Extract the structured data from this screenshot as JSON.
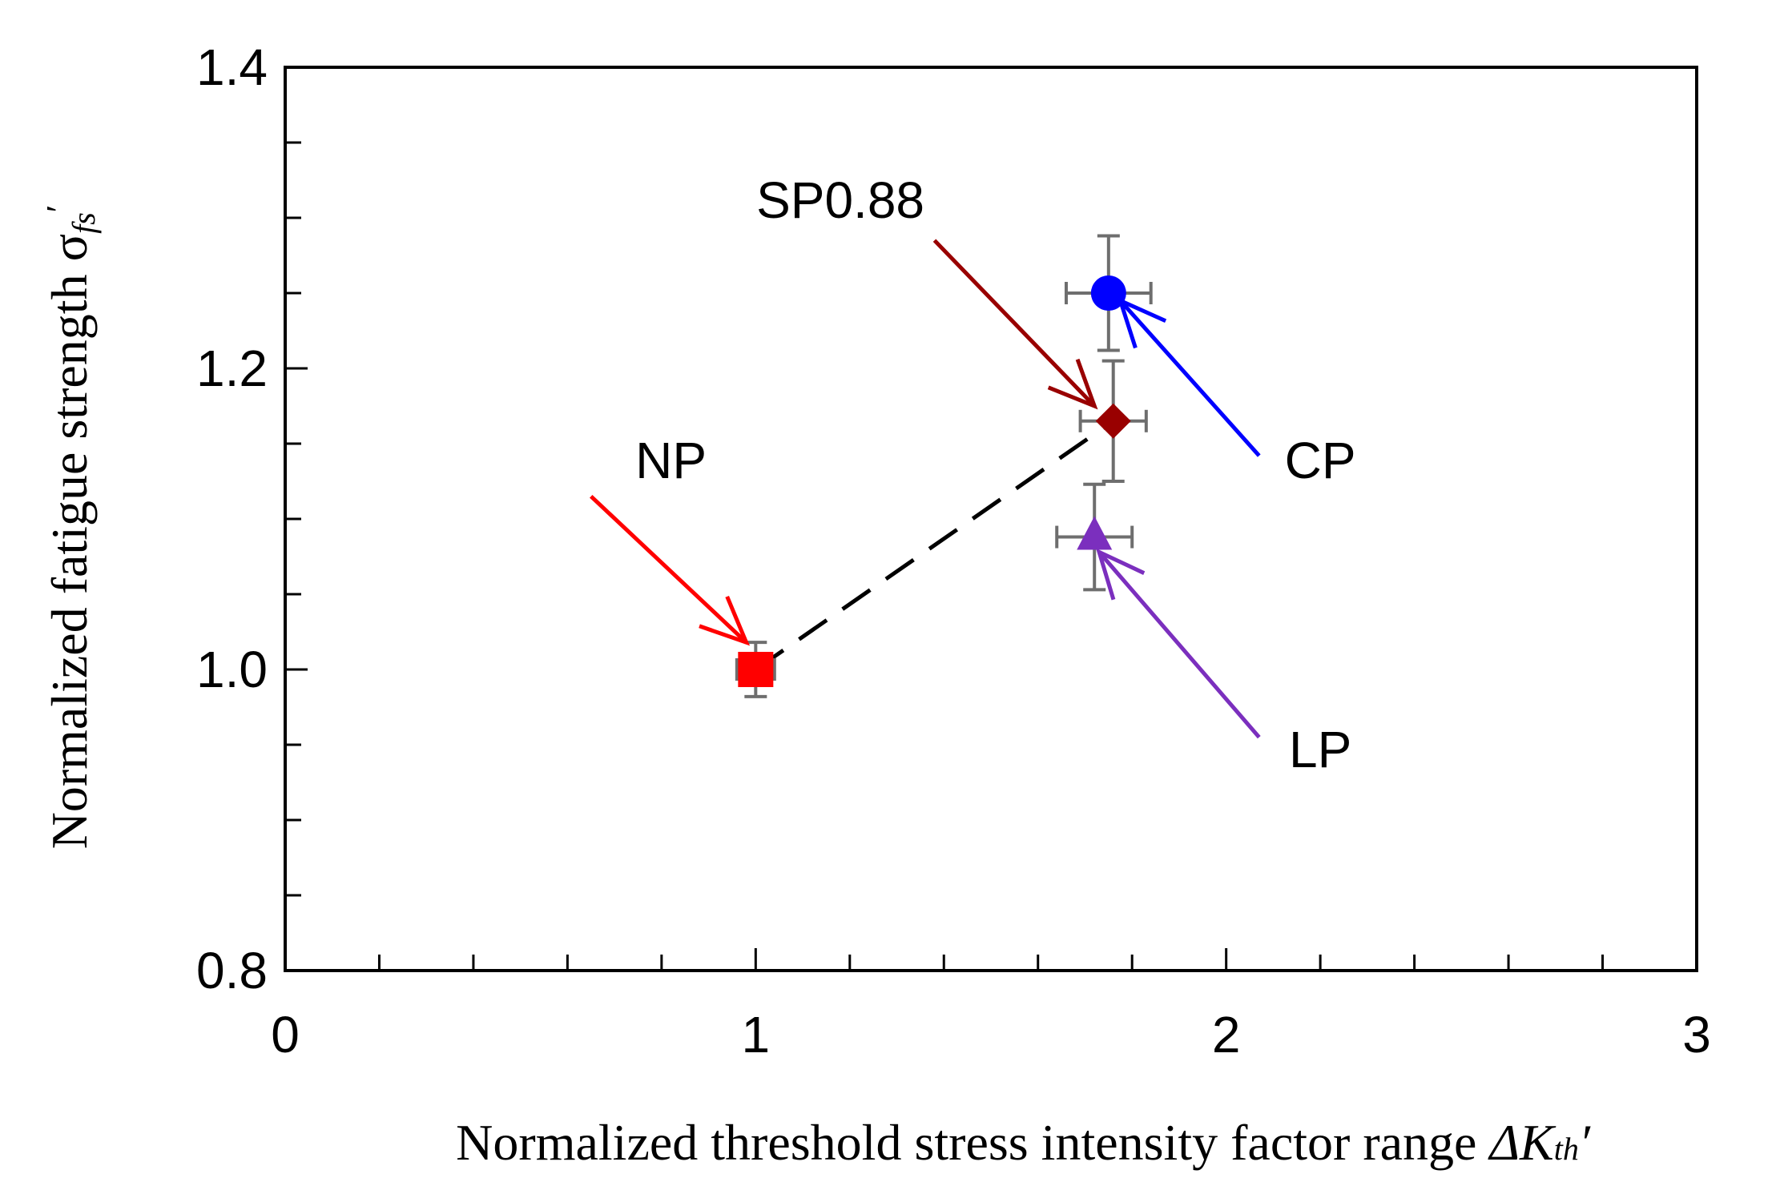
{
  "chart_data": {
    "type": "scatter",
    "title": "",
    "xlabel": "Normalized threshold stress intensity factor range",
    "xlabel_symbol": "ΔK",
    "xlabel_subscript": "th",
    "xlabel_prime": "′",
    "ylabel": "Normalized fatigue strength",
    "ylabel_symbol": "σ",
    "ylabel_subscript": "fs",
    "ylabel_prime": "′",
    "xlim": [
      0,
      3
    ],
    "ylim": [
      0.8,
      1.4
    ],
    "xticks": [
      0,
      1,
      2,
      3
    ],
    "xtick_labels": [
      "0",
      "1",
      "2",
      "3"
    ],
    "yticks": [
      0.8,
      1.0,
      1.2,
      1.4
    ],
    "ytick_labels": [
      "0.8",
      "1.0",
      "1.2",
      "1.4"
    ],
    "x_minor_step": 0.2,
    "y_minor_step": 0.05,
    "grid": false,
    "series": [
      {
        "name": "NP",
        "x": 1.0,
        "y": 1.0,
        "xerr": 0.04,
        "yerr": 0.018,
        "marker": "square",
        "color": "#ff0000",
        "label_x": 0.82,
        "label_y": 1.127,
        "arrow_from": [
          0.65,
          1.115
        ],
        "arrow_to": [
          0.98,
          1.018
        ]
      },
      {
        "name": "SP0.88",
        "x": 1.76,
        "y": 1.165,
        "xerr": 0.07,
        "yerr": 0.04,
        "marker": "diamond",
        "color": "#990000",
        "label_x": 1.18,
        "label_y": 1.3,
        "arrow_from": [
          1.38,
          1.285
        ],
        "arrow_to": [
          1.72,
          1.175
        ]
      },
      {
        "name": "CP",
        "x": 1.75,
        "y": 1.25,
        "xerr": 0.09,
        "yerr": 0.038,
        "marker": "circle",
        "color": "#0000ff",
        "label_x": 2.2,
        "label_y": 1.127,
        "arrow_from": [
          2.07,
          1.142
        ],
        "arrow_to": [
          1.775,
          1.245
        ]
      },
      {
        "name": "LP",
        "x": 1.72,
        "y": 1.088,
        "xerr": 0.08,
        "yerr": 0.035,
        "marker": "triangle",
        "color": "#7b2fbe",
        "label_x": 2.2,
        "label_y": 0.935,
        "arrow_from": [
          2.07,
          0.955
        ],
        "arrow_to": [
          1.73,
          1.078
        ]
      }
    ],
    "dashed_line": {
      "from": [
        1.0,
        1.0
      ],
      "to": [
        1.76,
        1.165
      ],
      "color": "#000000"
    }
  }
}
